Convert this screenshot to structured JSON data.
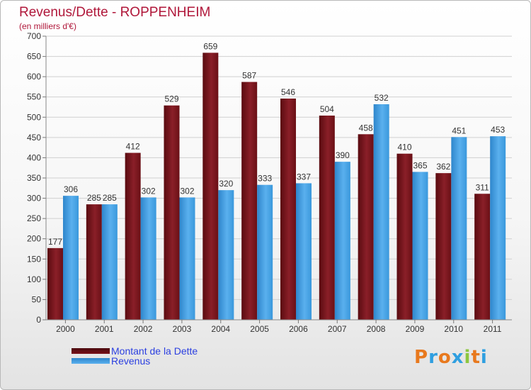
{
  "title": "Revenus/Dette - ROPPENHEIM",
  "subtitle": "(en milliers d'€)",
  "logo_text": "Proxiti",
  "chart_data": {
    "type": "bar",
    "categories": [
      "2000",
      "2001",
      "2002",
      "2003",
      "2004",
      "2005",
      "2006",
      "2007",
      "2008",
      "2009",
      "2010",
      "2011"
    ],
    "series": [
      {
        "name": "Montant de la Dette",
        "color": "#7a1018",
        "values": [
          177,
          285,
          412,
          529,
          659,
          587,
          546,
          504,
          458,
          410,
          362,
          311
        ]
      },
      {
        "name": "Revenus",
        "color": "#3a9be0",
        "values": [
          306,
          285,
          302,
          302,
          320,
          333,
          337,
          390,
          532,
          365,
          451,
          453
        ]
      }
    ],
    "ylim": [
      0,
      700
    ],
    "yticks": [
      0,
      50,
      100,
      150,
      200,
      250,
      300,
      350,
      400,
      450,
      500,
      550,
      600,
      650,
      700
    ],
    "grid": true,
    "legend_position": "bottom-left",
    "data_labels": true
  }
}
